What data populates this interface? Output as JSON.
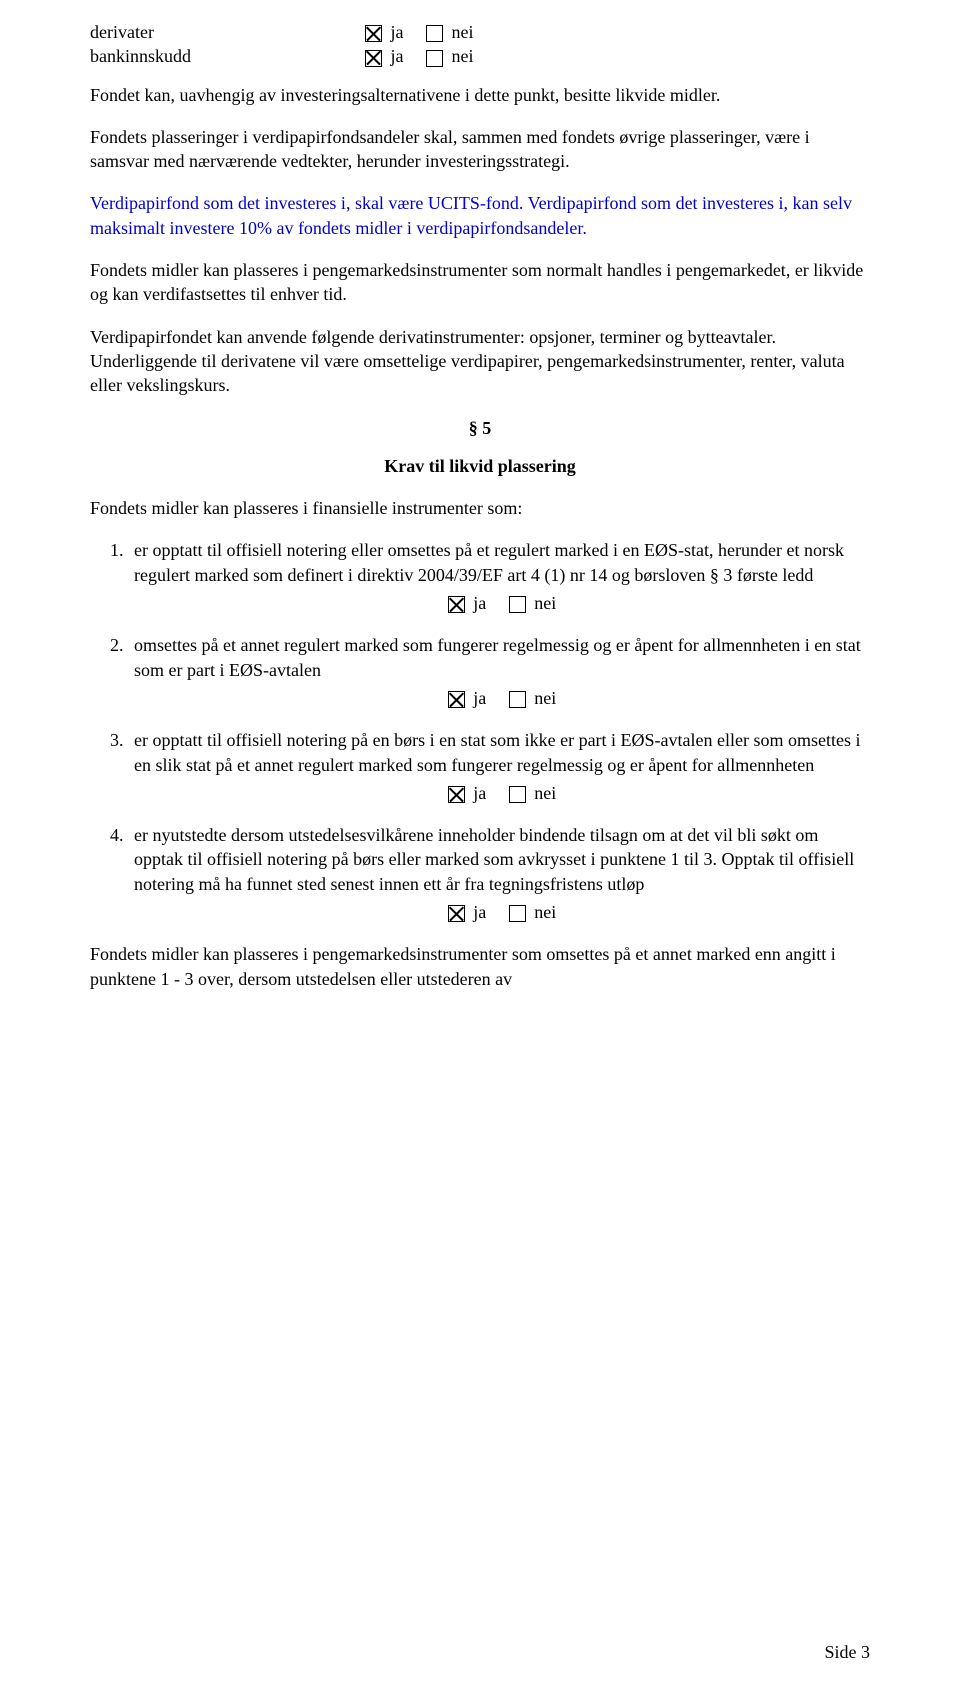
{
  "topRows": [
    {
      "label": "derivater",
      "ja_checked": true,
      "nei_checked": false
    },
    {
      "label": "bankinnskudd",
      "ja_checked": true,
      "nei_checked": false
    }
  ],
  "ja": "ja",
  "nei": "nei",
  "p1": "Fondet kan, uavhengig av investeringsalternativene i dette punkt, besitte likvide midler.",
  "p2": "Fondets plasseringer i verdipapirfondsandeler skal, sammen med fondets øvrige plasseringer, være i samsvar med nærværende vedtekter, herunder investeringsstrategi.",
  "p3": "Verdipapirfond som det investeres i, skal være UCITS-fond. Verdipapirfond som det investeres i, kan selv maksimalt investere 10% av fondets midler i verdipapirfondsandeler.",
  "p4": "Fondets midler kan plasseres i pengemarkedsinstrumenter som normalt handles i pengemarkedet, er likvide og kan verdifastsettes til enhver tid.",
  "p5": "Verdipapirfondet kan anvende følgende derivatinstrumenter: opsjoner, terminer og bytteavtaler. Underliggende til derivatene vil være omsettelige verdipapirer, pengemarkedsinstrumenter, renter, valuta eller vekslingskurs.",
  "sectionNum": "§ 5",
  "sectionTitle": "Krav til likvid plassering",
  "p6": "Fondets midler kan plasseres i finansielle instrumenter som:",
  "items": [
    {
      "text": "er opptatt til offisiell notering eller omsettes på et regulert marked i en EØS-stat, herunder et norsk regulert marked som definert i direktiv 2004/39/EF art 4 (1) nr 14 og børsloven § 3 første ledd",
      "ja_checked": true,
      "nei_checked": false
    },
    {
      "text": "omsettes på et annet regulert marked som fungerer regelmessig og er åpent for allmennheten i en stat som er part i EØS-avtalen",
      "ja_checked": true,
      "nei_checked": false
    },
    {
      "text": "er opptatt til offisiell notering på en børs i en stat som ikke er part i EØS-avtalen eller som omsettes i en slik stat på et annet regulert marked som fungerer regelmessig og er åpent for allmennheten",
      "ja_checked": true,
      "nei_checked": false
    },
    {
      "text": "er nyutstedte dersom utstedelsesvilkårene inneholder bindende tilsagn om at det vil bli søkt om opptak til offisiell notering på børs eller marked som avkrysset i punktene 1 til 3. Opptak til offisiell notering må ha funnet sted senest innen ett år fra tegningsfristens utløp",
      "ja_checked": true,
      "nei_checked": false
    }
  ],
  "p7": "Fondets midler kan plasseres i pengemarkedsinstrumenter som omsettes på et annet marked enn angitt i punktene 1 - 3 over, dersom utstedelsen eller utstederen av",
  "footer": "Side 3"
}
